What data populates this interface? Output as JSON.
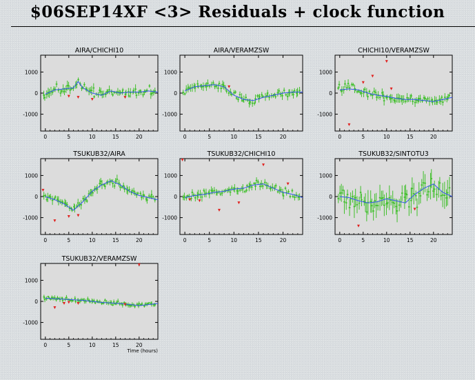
{
  "page": {
    "title": "$06SEP14XF <3> Residuals + clock function"
  },
  "colors": {
    "panel_fill": "#dcdcdc",
    "data": "#3fbf2a",
    "clock": "#3355ee",
    "outlier": "#e0201e"
  },
  "chart_data": [
    {
      "type": "scatter",
      "title": "AIRA/CHICHI10",
      "xlim": [
        -1,
        24
      ],
      "ylim": [
        -1800,
        1800
      ],
      "xticks": [
        "0",
        "5",
        "10",
        "15",
        "20"
      ],
      "yticks": [
        "1000",
        "0",
        "-1000"
      ],
      "clock": {
        "x": [
          0,
          2,
          4,
          6,
          7,
          8,
          10,
          12,
          14,
          16,
          18,
          20,
          22,
          24
        ],
        "y": [
          -50,
          150,
          200,
          250,
          550,
          250,
          0,
          -100,
          100,
          0,
          50,
          50,
          100,
          50
        ]
      },
      "series": {
        "trend": {
          "x": [
            0,
            2,
            4,
            6,
            7,
            8,
            10,
            12,
            14,
            16,
            18,
            20,
            22,
            24
          ],
          "y": [
            -50,
            150,
            200,
            250,
            550,
            250,
            0,
            -100,
            100,
            0,
            50,
            50,
            100,
            50
          ]
        },
        "scatter": 250,
        "err": 180,
        "count": 75
      },
      "outliers": {
        "x": [
          5,
          7,
          10,
          17
        ],
        "y": [
          -150,
          -200,
          -300,
          -200
        ]
      }
    },
    {
      "type": "scatter",
      "title": "AIRA/VERAMZSW",
      "xlim": [
        -1,
        24
      ],
      "ylim": [
        -1800,
        1800
      ],
      "xticks": [
        "0",
        "5",
        "10",
        "15",
        "20"
      ],
      "yticks": [
        "1000",
        "0",
        "-1000"
      ],
      "clock": {
        "x": [
          0,
          2,
          4,
          6,
          8,
          10,
          12,
          14,
          16,
          18,
          20,
          22,
          24
        ],
        "y": [
          100,
          300,
          350,
          400,
          300,
          -100,
          -300,
          -350,
          -200,
          -100,
          0,
          50,
          50
        ]
      },
      "series": {
        "trend": {
          "x": [
            0,
            2,
            4,
            6,
            8,
            10,
            12,
            14,
            16,
            18,
            20,
            22,
            24
          ],
          "y": [
            100,
            300,
            350,
            400,
            300,
            -100,
            -300,
            -350,
            -200,
            -100,
            0,
            50,
            50
          ]
        },
        "scatter": 220,
        "err": 160,
        "count": 75
      },
      "outliers": {
        "x": [
          9
        ],
        "y": [
          300
        ]
      }
    },
    {
      "type": "scatter",
      "title": "CHICHI10/VERAMZSW",
      "xlim": [
        -1,
        24
      ],
      "ylim": [
        -1800,
        1800
      ],
      "xticks": [
        "0",
        "5",
        "10",
        "15",
        "20"
      ],
      "yticks": [
        "1000",
        "0",
        "-1000"
      ],
      "clock": {
        "x": [
          0,
          2,
          4,
          6,
          8,
          10,
          12,
          14,
          16,
          18,
          20,
          22,
          24
        ],
        "y": [
          150,
          200,
          150,
          0,
          -100,
          -150,
          -250,
          -300,
          -300,
          -350,
          -400,
          -300,
          -200
        ]
      },
      "series": {
        "trend": {
          "x": [
            0,
            2,
            4,
            6,
            8,
            10,
            12,
            14,
            16,
            18,
            20,
            22,
            24
          ],
          "y": [
            150,
            200,
            150,
            0,
            -100,
            -150,
            -250,
            -300,
            -300,
            -350,
            -400,
            -300,
            -200
          ]
        },
        "scatter": 260,
        "err": 180,
        "count": 75
      },
      "outliers": {
        "x": [
          2,
          5,
          7,
          10,
          11
        ],
        "y": [
          -1500,
          500,
          800,
          1500,
          200
        ]
      }
    },
    {
      "type": "scatter",
      "title": "TSUKUB32/AIRA",
      "xlim": [
        -1,
        24
      ],
      "ylim": [
        -1800,
        1800
      ],
      "xticks": [
        "0",
        "5",
        "10",
        "15",
        "20"
      ],
      "yticks": [
        "1000",
        "0",
        "-1000"
      ],
      "clock": {
        "x": [
          0,
          2,
          4,
          6,
          8,
          10,
          12,
          14,
          16,
          18,
          20,
          22,
          24
        ],
        "y": [
          0,
          -150,
          -350,
          -650,
          -250,
          250,
          550,
          750,
          550,
          250,
          50,
          -50,
          -150
        ]
      },
      "series": {
        "trend": {
          "x": [
            0,
            2,
            4,
            6,
            8,
            10,
            12,
            14,
            16,
            18,
            20,
            22,
            24
          ],
          "y": [
            0,
            -150,
            -350,
            -650,
            -250,
            250,
            550,
            750,
            550,
            250,
            50,
            -50,
            -150
          ]
        },
        "scatter": 220,
        "err": 170,
        "count": 75
      },
      "outliers": {
        "x": [
          2,
          5,
          7,
          -0.5
        ],
        "y": [
          -1150,
          -950,
          -900,
          300
        ]
      }
    },
    {
      "type": "scatter",
      "title": "TSUKUB32/CHICHI10",
      "xlim": [
        -1,
        24
      ],
      "ylim": [
        -1800,
        1800
      ],
      "xticks": [
        "0",
        "5",
        "10",
        "15",
        "20"
      ],
      "yticks": [
        "1000",
        "0",
        "-1000"
      ],
      "clock": {
        "x": [
          0,
          2,
          4,
          6,
          8,
          10,
          12,
          14,
          16,
          18,
          20,
          22,
          24
        ],
        "y": [
          -50,
          50,
          100,
          200,
          250,
          350,
          400,
          550,
          600,
          400,
          200,
          100,
          -50
        ]
      },
      "series": {
        "trend": {
          "x": [
            0,
            2,
            4,
            6,
            8,
            10,
            12,
            14,
            16,
            18,
            20,
            22,
            24
          ],
          "y": [
            -50,
            50,
            100,
            200,
            250,
            350,
            400,
            550,
            600,
            400,
            200,
            100,
            -50
          ]
        },
        "scatter": 230,
        "err": 170,
        "count": 75
      },
      "outliers": {
        "x": [
          1,
          3,
          7,
          11,
          16,
          21,
          -0.5
        ],
        "y": [
          -150,
          -200,
          -650,
          -300,
          1500,
          600,
          1800
        ]
      }
    },
    {
      "type": "scatter",
      "title": "TSUKUB32/SINTOTU3",
      "xlim": [
        -1,
        24
      ],
      "ylim": [
        -1800,
        1800
      ],
      "xticks": [
        "0",
        "5",
        "10",
        "15",
        "20"
      ],
      "yticks": [
        "1000",
        "0",
        "-1000"
      ],
      "clock": {
        "x": [
          0,
          2,
          4,
          6,
          8,
          10,
          12,
          14,
          16,
          18,
          20,
          22,
          24
        ],
        "y": [
          0,
          -50,
          -200,
          -300,
          -250,
          -100,
          -200,
          -300,
          100,
          400,
          600,
          200,
          0
        ]
      },
      "series": {
        "trend": {
          "x": [
            0,
            2,
            4,
            6,
            8,
            10,
            12,
            14,
            16,
            18,
            20,
            22,
            24
          ],
          "y": [
            0,
            -50,
            -200,
            -300,
            -250,
            -100,
            -200,
            -300,
            100,
            400,
            600,
            200,
            0
          ]
        },
        "scatter": 700,
        "err": 500,
        "count": 70
      },
      "outliers": {
        "x": [
          4,
          16
        ],
        "y": [
          -1400,
          -600
        ]
      }
    },
    {
      "type": "scatter",
      "title": "TSUKUB32/VERAMZSW",
      "xlim": [
        -1,
        24
      ],
      "ylim": [
        -1800,
        1800
      ],
      "xticks": [
        "0",
        "5",
        "10",
        "15",
        "20"
      ],
      "yticks": [
        "1000",
        "0",
        "-1000"
      ],
      "xlabel": "Time (hours)",
      "clock": {
        "x": [
          0,
          4,
          8,
          12,
          16,
          20,
          24
        ],
        "y": [
          150,
          100,
          50,
          -50,
          -100,
          -200,
          -100
        ]
      },
      "series": {
        "trend": {
          "x": [
            0,
            4,
            8,
            12,
            16,
            20,
            24
          ],
          "y": [
            150,
            100,
            50,
            -50,
            -100,
            -200,
            -100
          ]
        },
        "scatter": 120,
        "err": 100,
        "count": 80
      },
      "outliers": {
        "x": [
          2,
          4,
          5,
          7,
          17,
          20
        ],
        "y": [
          -300,
          -100,
          -50,
          -100,
          -150,
          1800
        ]
      }
    }
  ]
}
